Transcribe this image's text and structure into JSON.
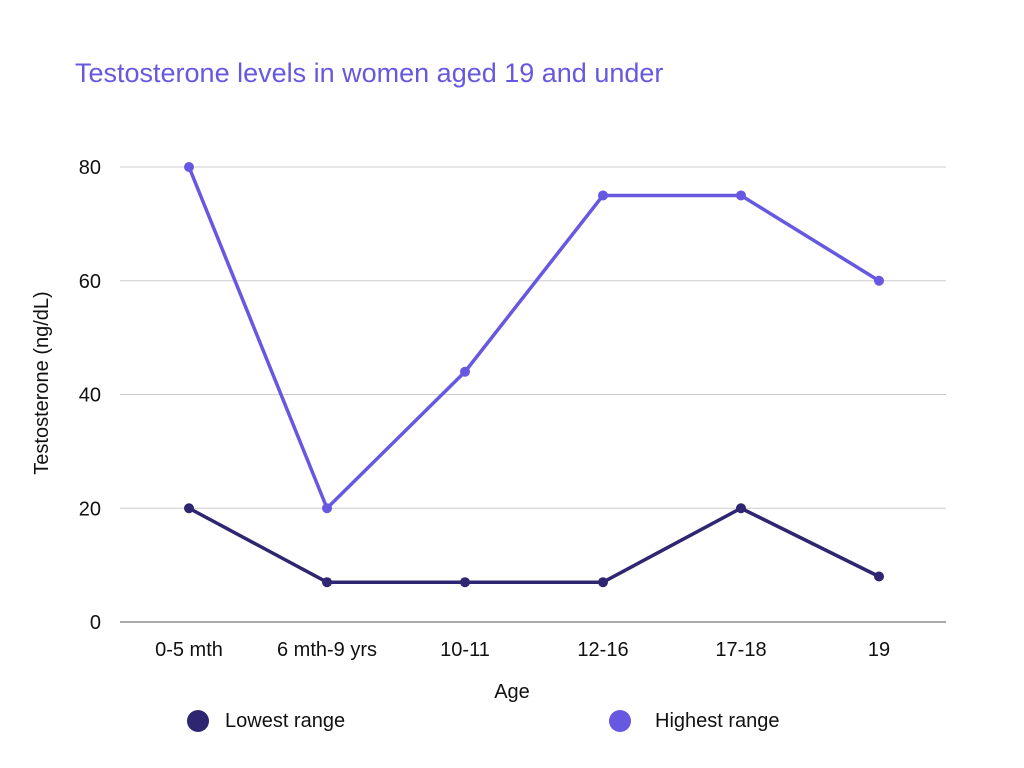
{
  "chart_data": {
    "type": "line",
    "title": "Testosterone levels in women aged 19 and under",
    "xlabel": "Age",
    "ylabel": "Testosterone (ng/dL)",
    "ylim": [
      0,
      80
    ],
    "yticks": [
      0,
      20,
      40,
      60,
      80
    ],
    "grid": true,
    "legend_placement": "bottom",
    "categories": [
      "0-5 mth",
      "6 mth-9 yrs",
      "10-11",
      "12-16",
      "17-18",
      "19"
    ],
    "series": [
      {
        "name": "Lowest range",
        "color": "#2e2670",
        "values": [
          20,
          7,
          7,
          7,
          20,
          8
        ]
      },
      {
        "name": "Highest range",
        "color": "#6658e0",
        "values": [
          80,
          20,
          44,
          75,
          75,
          60
        ]
      }
    ]
  }
}
